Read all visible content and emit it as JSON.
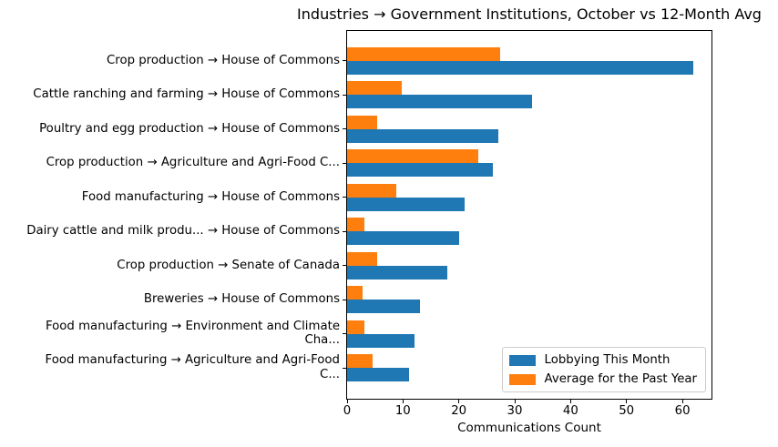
{
  "chart_data": {
    "type": "bar",
    "orientation": "horizontal",
    "title": "Industries → Government Institutions, October vs 12-Month Avg",
    "xlabel": "Communications Count",
    "categories": [
      "Crop production → House of Commons",
      "Cattle ranching and farming → House of Commons",
      "Poultry and egg production → House of Commons",
      "Crop production → Agriculture and Agri-Food C...",
      "Food manufacturing → House of Commons",
      "Dairy cattle and milk produ... → House of Commons",
      "Crop production → Senate of Canada",
      "Breweries → House of Commons",
      "Food manufacturing → Environment and Climate\nCha...",
      "Food manufacturing → Agriculture and Agri-Food\nC..."
    ],
    "series": [
      {
        "name": "Lobbying This Month",
        "color": "#1f77b4",
        "values": [
          62,
          33,
          27,
          26,
          21,
          20,
          18,
          13,
          12,
          11
        ]
      },
      {
        "name": "Average for the Past Year",
        "color": "#ff7f0e",
        "values": [
          27.3,
          9.8,
          5.4,
          23.5,
          8.8,
          3.1,
          5.3,
          2.7,
          3.1,
          4.5
        ]
      }
    ],
    "xticks": [
      0,
      10,
      20,
      30,
      40,
      50,
      60
    ],
    "xlim": [
      0,
      65.2
    ],
    "legend_position": "lower right",
    "grid": false
  }
}
